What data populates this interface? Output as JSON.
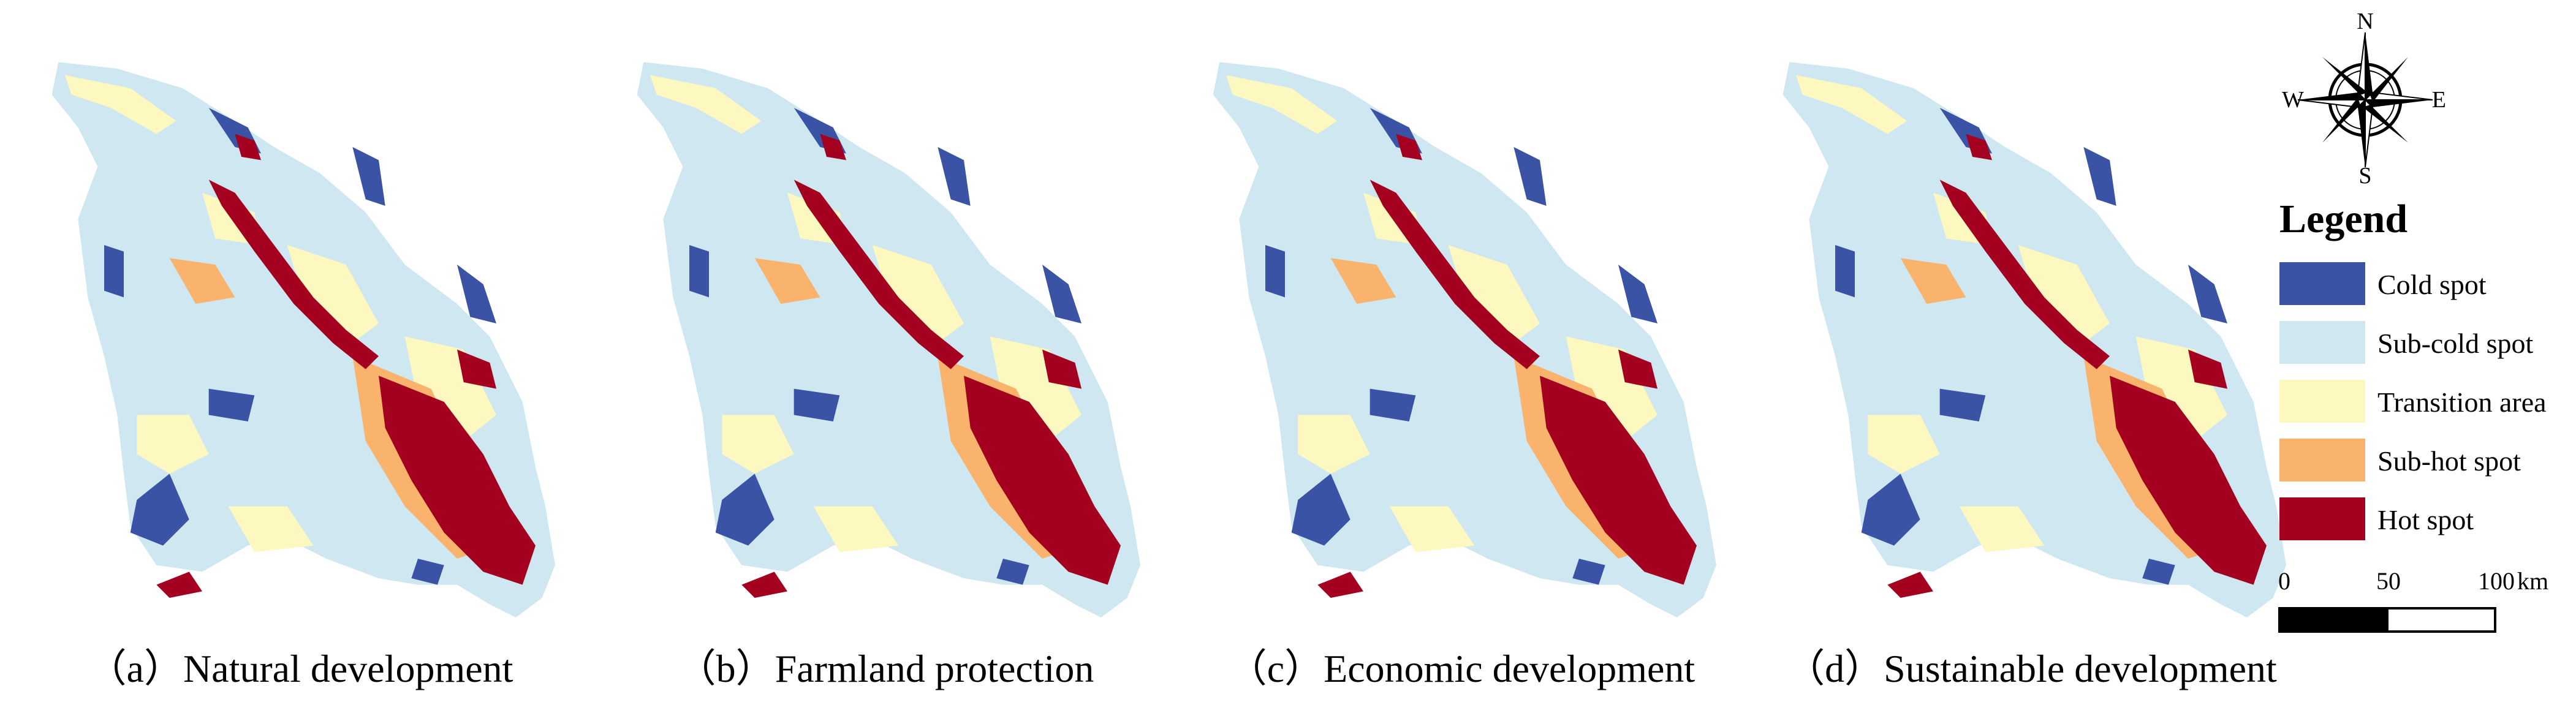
{
  "panels": [
    {
      "id": "a",
      "caption": "（a）Natural development"
    },
    {
      "id": "b",
      "caption": "（b）Farmland protection"
    },
    {
      "id": "c",
      "caption": "（c）Economic development"
    },
    {
      "id": "d",
      "caption": "（d）Sustainable development"
    }
  ],
  "compass": {
    "north": "N",
    "south": "S",
    "east": "E",
    "west": "W"
  },
  "legend": {
    "title": "Legend",
    "items": [
      {
        "label": "Cold spot",
        "color": "#3a53a4"
      },
      {
        "label": "Sub-cold spot",
        "color": "#cfe7f1"
      },
      {
        "label": "Transition area",
        "color": "#fdf8bf"
      },
      {
        "label": "Sub-hot spot",
        "color": "#f9b36c"
      },
      {
        "label": "Hot spot",
        "color": "#a4001f"
      }
    ]
  },
  "scale": {
    "labels": [
      "0",
      "50",
      "100"
    ],
    "unit": "km"
  },
  "colors": {
    "cold": "#3a53a4",
    "subcold": "#cfe7f1",
    "transition": "#fdf8bf",
    "subhot": "#f9b36c",
    "hot": "#a4001f"
  }
}
